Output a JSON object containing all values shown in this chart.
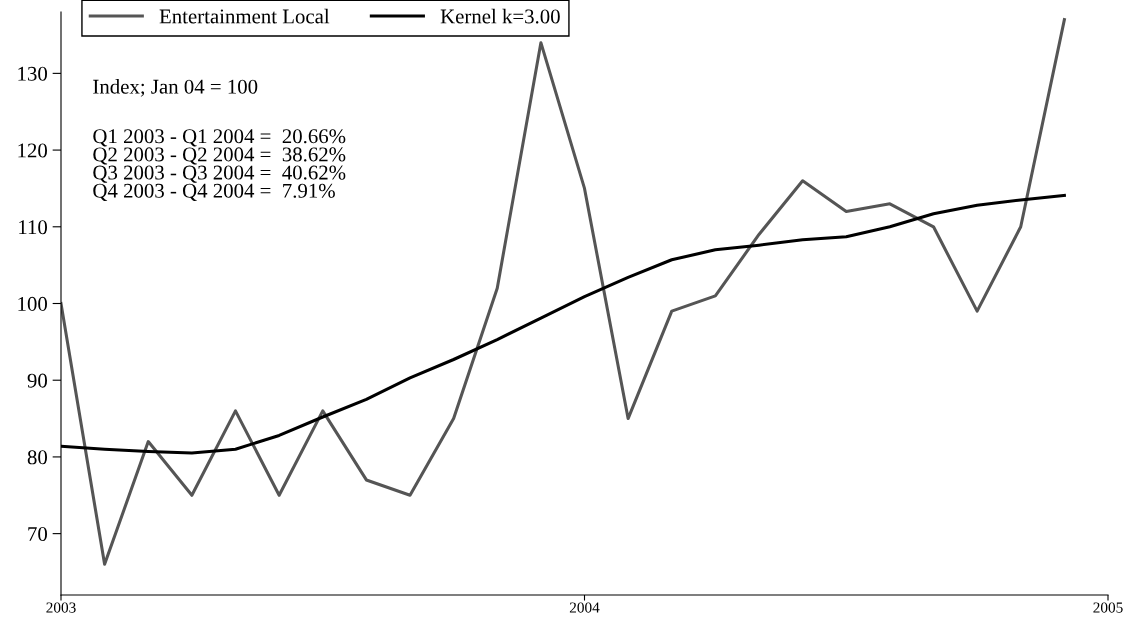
{
  "chart_data": {
    "type": "line",
    "x": [
      2003.0,
      2003.0833,
      2003.1667,
      2003.25,
      2003.3333,
      2003.4167,
      2003.5,
      2003.5833,
      2003.6667,
      2003.75,
      2003.8333,
      2003.9167,
      2004.0,
      2004.0833,
      2004.1667,
      2004.25,
      2004.3333,
      2004.4167,
      2004.5,
      2004.5833,
      2004.6667,
      2004.75,
      2004.8333,
      2004.9167
    ],
    "series": [
      {
        "name": "Entertainment Local",
        "color": "#555555",
        "values": [
          100,
          66,
          82,
          75,
          86,
          75,
          86,
          77,
          75,
          85,
          102,
          134,
          115,
          85,
          99,
          101,
          109,
          116,
          112,
          113,
          110,
          99,
          110,
          137
        ]
      },
      {
        "name": "Kernel k=3.00",
        "color": "#000000",
        "values": [
          81.4,
          81.0,
          80.7,
          80.5,
          81.0,
          82.8,
          85.2,
          87.5,
          90.3,
          92.7,
          95.3,
          98.1,
          100.9,
          103.4,
          105.7,
          107.0,
          107.6,
          108.3,
          108.7,
          110.0,
          111.7,
          112.8,
          113.5,
          114.1
        ]
      }
    ],
    "annotations": [
      "Index; Jan 04 = 100",
      "Q1 2003 - Q1 2004 =  20.66%\nQ2 2003 - Q2 2004 =  38.62%\nQ3 2003 - Q3 2004 =  40.62%\nQ4 2003 - Q4 2004 =  7.91%"
    ],
    "xlim": [
      2003,
      2005
    ],
    "xticks": [
      2003,
      2004,
      2005
    ],
    "ylim": [
      62,
      138
    ],
    "yticks": [
      70,
      80,
      90,
      100,
      110,
      120,
      130
    ],
    "grid": false,
    "legend": "top left",
    "marker": "none",
    "line_style": "solid"
  }
}
